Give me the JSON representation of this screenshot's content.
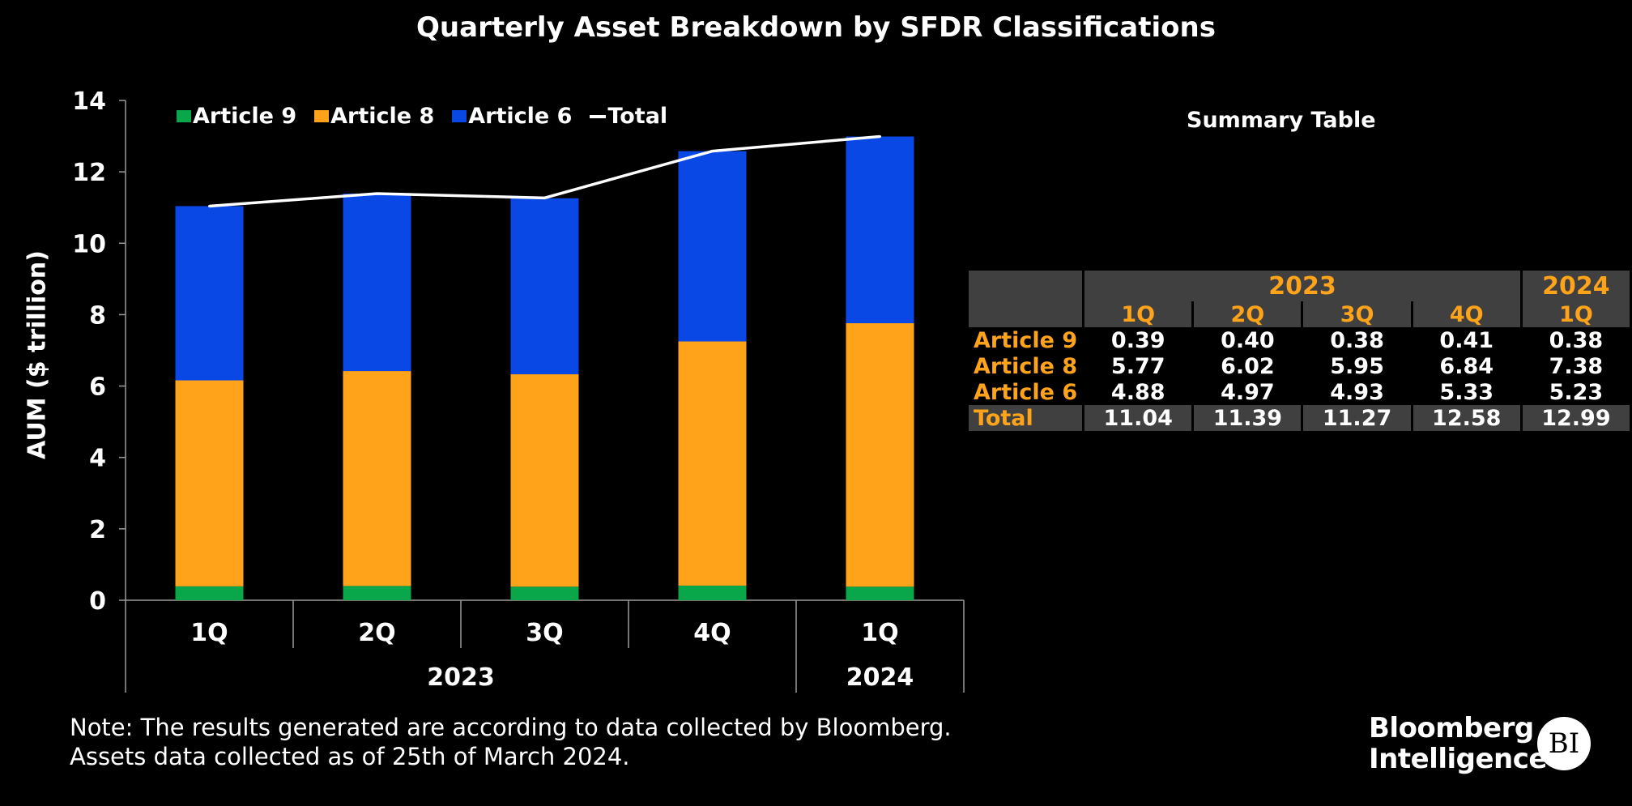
{
  "title": "Quarterly Asset Breakdown by SFDR Classifications",
  "legend": {
    "a9": "Article 9",
    "a8": "Article 8",
    "a6": "Article 6",
    "total": "Total"
  },
  "colors": {
    "article9": "#0aa64a",
    "article8": "#ffa31a",
    "article6": "#0a48e6",
    "total": "#ffffff",
    "label_orange": "#ffa31a"
  },
  "chart_data": {
    "type": "bar",
    "stacked": true,
    "title": "Quarterly Asset Breakdown by SFDR Classifications",
    "xlabel": "",
    "ylabel": "AUM ($ trillion)",
    "ylim": [
      0,
      14
    ],
    "yticks": [
      "0",
      "2",
      "4",
      "6",
      "8",
      "10",
      "12",
      "14"
    ],
    "categories": [
      "1Q",
      "2Q",
      "3Q",
      "4Q",
      "1Q"
    ],
    "groups": [
      {
        "label": "2023",
        "span": 4
      },
      {
        "label": "2024",
        "span": 1
      }
    ],
    "series": [
      {
        "name": "Article 9",
        "type": "bar",
        "values": [
          0.39,
          0.4,
          0.38,
          0.41,
          0.38
        ]
      },
      {
        "name": "Article 8",
        "type": "bar",
        "values": [
          5.77,
          6.02,
          5.95,
          6.84,
          7.38
        ]
      },
      {
        "name": "Article 6",
        "type": "bar",
        "values": [
          4.88,
          4.97,
          4.93,
          5.33,
          5.23
        ]
      },
      {
        "name": "Total",
        "type": "line",
        "values": [
          11.04,
          11.39,
          11.27,
          12.58,
          12.99
        ]
      }
    ],
    "legend_position": "top-left",
    "grid": false
  },
  "summary": {
    "title": "Summary Table",
    "years": {
      "y2023": "2023",
      "y2024": "2024"
    },
    "quarters": [
      "1Q",
      "2Q",
      "3Q",
      "4Q",
      "1Q"
    ],
    "rows": [
      {
        "label": "Article 9",
        "values": [
          "0.39",
          "0.40",
          "0.38",
          "0.41",
          "0.38"
        ]
      },
      {
        "label": "Article 8",
        "values": [
          "5.77",
          "6.02",
          "5.95",
          "6.84",
          "7.38"
        ]
      },
      {
        "label": "Article 6",
        "values": [
          "4.88",
          "4.97",
          "4.93",
          "5.33",
          "5.23"
        ]
      },
      {
        "label": "Total",
        "values": [
          "11.04",
          "11.39",
          "11.27",
          "12.58",
          "12.99"
        ]
      }
    ]
  },
  "note": {
    "line1": "Note: The results generated are according to data collected by Bloomberg.",
    "line2": "Assets data collected as of 25th of March 2024."
  },
  "brand": {
    "line1": "Bloomberg",
    "line2": "Intelligence",
    "mark": "BI"
  }
}
